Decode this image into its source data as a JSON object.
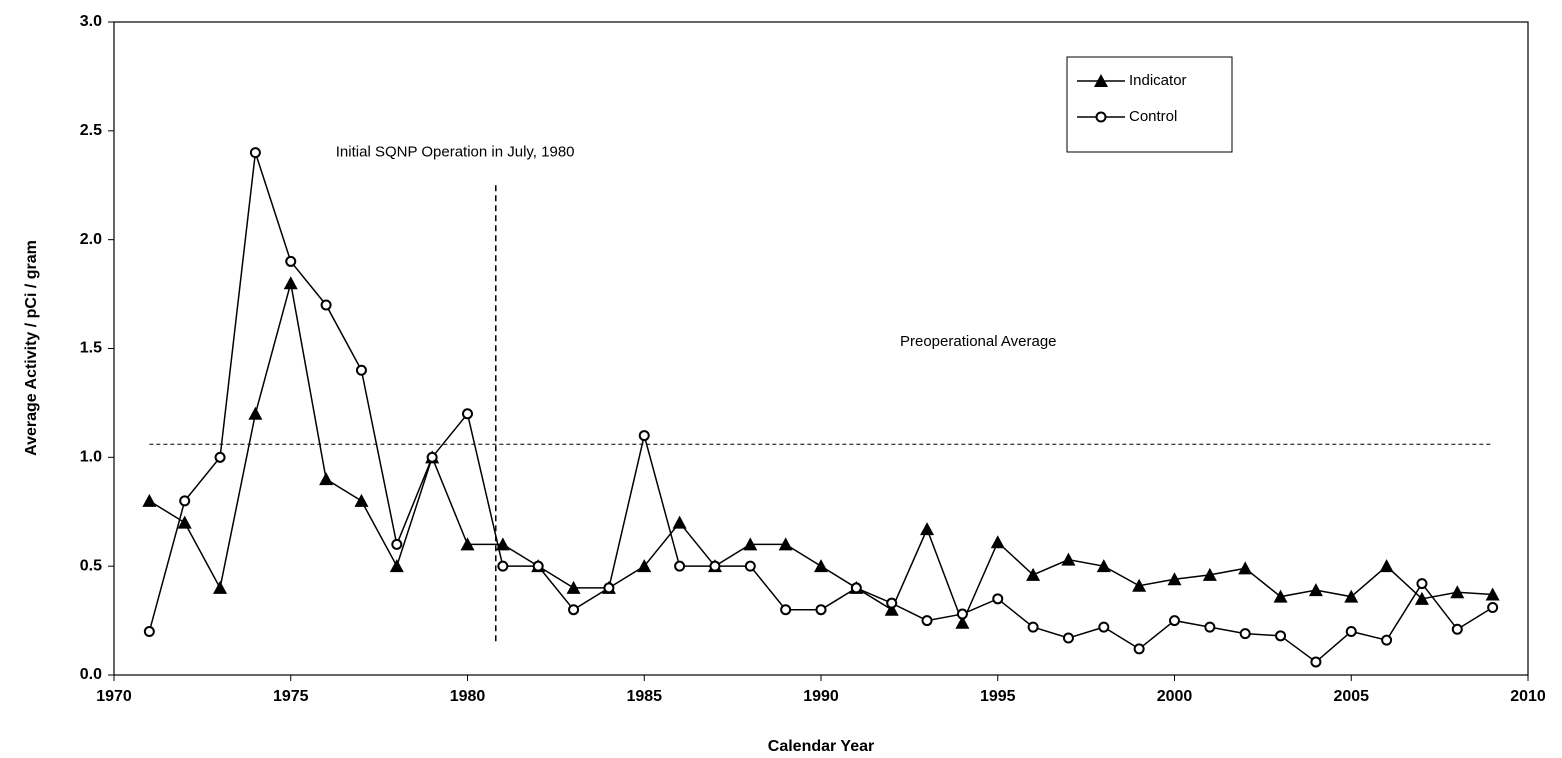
{
  "chart_data": {
    "type": "line",
    "xlabel": "Calendar Year",
    "ylabel": "Average Activity / pCi / gram",
    "x": [
      1971,
      1972,
      1973,
      1974,
      1975,
      1976,
      1977,
      1978,
      1979,
      1980,
      1981,
      1982,
      1983,
      1984,
      1985,
      1986,
      1987,
      1988,
      1989,
      1990,
      1991,
      1992,
      1993,
      1994,
      1995,
      1996,
      1997,
      1998,
      1999,
      2000,
      2001,
      2002,
      2003,
      2004,
      2005,
      2006,
      2007,
      2008,
      2009
    ],
    "series": [
      {
        "name": "Indicator",
        "color": "#000000",
        "marker": "triangle",
        "values": [
          0.8,
          0.7,
          0.4,
          1.2,
          1.8,
          0.9,
          0.8,
          0.5,
          1.0,
          0.6,
          0.6,
          0.5,
          0.4,
          0.4,
          0.5,
          0.7,
          0.5,
          0.6,
          0.6,
          0.5,
          0.4,
          0.3,
          0.67,
          0.24,
          0.61,
          0.46,
          0.53,
          0.5,
          0.41,
          0.44,
          0.46,
          0.49,
          0.36,
          0.39,
          0.36,
          0.5,
          0.35,
          0.38,
          0.37
        ]
      },
      {
        "name": "Control",
        "color": "#000000",
        "marker": "circle",
        "values": [
          0.2,
          0.8,
          1.0,
          2.4,
          1.9,
          1.7,
          1.4,
          0.6,
          1.0,
          1.2,
          0.5,
          0.5,
          0.3,
          0.4,
          1.1,
          0.5,
          0.5,
          0.5,
          0.3,
          0.3,
          0.4,
          0.33,
          0.25,
          0.28,
          0.35,
          0.22,
          0.17,
          0.22,
          0.12,
          0.25,
          0.22,
          0.19,
          0.18,
          0.06,
          0.2,
          0.16,
          0.42,
          0.21,
          0.31
        ]
      }
    ],
    "annotations": [
      {
        "text": "Initial SQNP Operation in July, 1980",
        "x": 1980.8
      },
      {
        "text": "Preoperational Average",
        "y": 1.06
      }
    ],
    "xlim": [
      1970,
      2010
    ],
    "xticks": [
      1970,
      1975,
      1980,
      1985,
      1990,
      1995,
      2000,
      2005,
      2010
    ],
    "ylim": [
      0,
      3
    ],
    "yticks": [
      {
        "value": 0,
        "label": "0.0"
      },
      {
        "value": 0.5,
        "label": "0.5"
      },
      {
        "value": 1,
        "label": "1.0"
      },
      {
        "value": 1.5,
        "label": "1.5"
      },
      {
        "value": 2,
        "label": "2.0"
      },
      {
        "value": 2.5,
        "label": "2.5"
      },
      {
        "value": 3,
        "label": "3.0"
      }
    ],
    "legend": "upper right"
  }
}
